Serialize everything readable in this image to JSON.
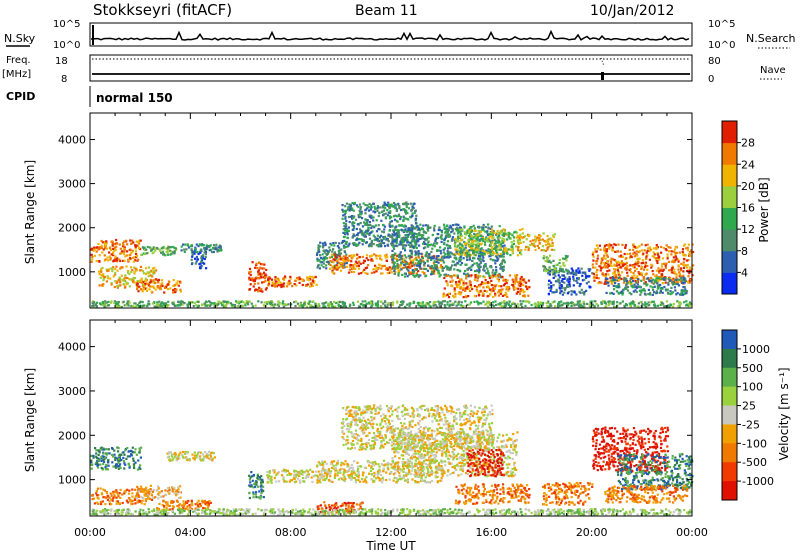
{
  "header": {
    "station": "Stokkseyri (fitACF)",
    "beam": "Beam 11",
    "date": "10/Jan/2012"
  },
  "noise_panel": {
    "left_label": "N.Sky",
    "right_label": "N.Search",
    "left_ticks": [
      "10^5",
      "10^0"
    ],
    "right_ticks": [
      "10^5",
      "10^0"
    ],
    "line_color": "#000000"
  },
  "freq_panel": {
    "left_label_1": "Freq.",
    "left_label_2": "[MHz]",
    "right_label": "Nave",
    "left_ticks": [
      "18",
      "8"
    ],
    "right_ticks": [
      "80",
      "0"
    ]
  },
  "cpid_panel": {
    "label": "CPID",
    "mode": "normal 150"
  },
  "chart_data": [
    {
      "type": "heatmap",
      "title": "Power",
      "ylabel": "Slant Range [km]",
      "colorbar_label": "Power [dB]",
      "yticks": [
        "1000",
        "2000",
        "3000",
        "4000"
      ],
      "ylim": [
        180,
        4600
      ],
      "colorbar_ticks": [
        "4",
        "8",
        "12",
        "16",
        "20",
        "24",
        "28"
      ],
      "colorbar_range": [
        0,
        32
      ],
      "colors": [
        "#0a2cf0",
        "#2d5fb0",
        "#4f8a6a",
        "#2fa84e",
        "#9bcf3e",
        "#f0b400",
        "#f07a00",
        "#e01e00"
      ],
      "bands": [
        {
          "t0": 0.0,
          "t1": 2.0,
          "r": 1500,
          "w": 250,
          "level": 6,
          "noise": 0.45
        },
        {
          "t0": 0.3,
          "t1": 2.6,
          "r": 900,
          "w": 250,
          "level": 5,
          "noise": 0.4
        },
        {
          "t0": 1.8,
          "t1": 3.6,
          "r": 700,
          "w": 150,
          "level": 6,
          "noise": 0.3
        },
        {
          "t0": 2.0,
          "t1": 3.4,
          "r": 1500,
          "w": 100,
          "level": 3,
          "noise": 0.3
        },
        {
          "t0": 3.6,
          "t1": 5.2,
          "r": 1550,
          "w": 100,
          "level": 2,
          "noise": 0.3
        },
        {
          "t0": 4.0,
          "t1": 4.6,
          "r": 1300,
          "w": 200,
          "level": 1,
          "noise": 0.2
        },
        {
          "t0": 6.3,
          "t1": 7.0,
          "r": 900,
          "w": 350,
          "level": 7,
          "noise": 0.3
        },
        {
          "t0": 7.0,
          "t1": 9.0,
          "r": 800,
          "w": 120,
          "level": 6,
          "noise": 0.3
        },
        {
          "t0": 9.0,
          "t1": 10.2,
          "r": 1400,
          "w": 300,
          "level": 2,
          "noise": 0.25
        },
        {
          "t0": 9.5,
          "t1": 14.0,
          "r": 1200,
          "w": 220,
          "level": 6,
          "noise": 0.45
        },
        {
          "t0": 10.0,
          "t1": 13.0,
          "r": 2100,
          "w": 500,
          "level": 2,
          "noise": 0.25
        },
        {
          "t0": 12.0,
          "t1": 16.5,
          "r": 1500,
          "w": 600,
          "level": 2,
          "noise": 0.3
        },
        {
          "t0": 14.5,
          "t1": 17.2,
          "r": 1700,
          "w": 300,
          "level": 4,
          "noise": 0.35
        },
        {
          "t0": 14.0,
          "t1": 17.5,
          "r": 700,
          "w": 250,
          "level": 6,
          "noise": 0.4
        },
        {
          "t0": 17.0,
          "t1": 18.5,
          "r": 1700,
          "w": 200,
          "level": 5,
          "noise": 0.4
        },
        {
          "t0": 18.2,
          "t1": 20.0,
          "r": 800,
          "w": 300,
          "level": 1,
          "noise": 0.3
        },
        {
          "t0": 18.0,
          "t1": 19.0,
          "r": 1200,
          "w": 200,
          "level": 3,
          "noise": 0.3
        },
        {
          "t0": 20.0,
          "t1": 24.0,
          "r": 1200,
          "w": 450,
          "level": 6,
          "noise": 0.45
        },
        {
          "t0": 20.5,
          "t1": 23.8,
          "r": 700,
          "w": 200,
          "level": 2,
          "noise": 0.3
        },
        {
          "t0": 0.0,
          "t1": 24.0,
          "r": 280,
          "w": 80,
          "level": 3,
          "noise": 0.65
        }
      ]
    },
    {
      "type": "heatmap",
      "title": "Velocity",
      "ylabel": "Slant Range [km]",
      "xlabel": "Time UT",
      "colorbar_label": "Velocity [m s⁻¹]",
      "yticks": [
        "1000",
        "2000",
        "3000",
        "4000"
      ],
      "ylim": [
        180,
        4600
      ],
      "xticks": [
        "00:00",
        "04:00",
        "08:00",
        "12:00",
        "16:00",
        "20:00",
        "00:00"
      ],
      "colorbar_ticks": [
        "1000",
        "500",
        "100",
        "25",
        "-25",
        "-100",
        "-500",
        "-1000"
      ],
      "colors": [
        "#1f5ab8",
        "#2d7a4a",
        "#5cb04a",
        "#9ad23e",
        "#c8c8c0",
        "#f0a000",
        "#f07a00",
        "#f03a00",
        "#e01000"
      ],
      "bands": [
        {
          "t0": 0.0,
          "t1": 2.0,
          "r": 1500,
          "w": 250,
          "level": 1,
          "noise": 0.4
        },
        {
          "t0": 0.0,
          "t1": 2.6,
          "r": 650,
          "w": 180,
          "level": 6,
          "noise": 0.4
        },
        {
          "t0": 1.8,
          "t1": 3.6,
          "r": 750,
          "w": 150,
          "level": 5,
          "noise": 0.35
        },
        {
          "t0": 2.6,
          "t1": 4.8,
          "r": 450,
          "w": 100,
          "level": 6,
          "noise": 0.3
        },
        {
          "t0": 3.0,
          "t1": 5.0,
          "r": 1550,
          "w": 100,
          "level": 4,
          "noise": 0.35
        },
        {
          "t0": 6.3,
          "t1": 6.9,
          "r": 900,
          "w": 300,
          "level": 1,
          "noise": 0.3
        },
        {
          "t0": 7.0,
          "t1": 9.5,
          "r": 1100,
          "w": 150,
          "level": 4,
          "noise": 0.35
        },
        {
          "t0": 9.0,
          "t1": 14.0,
          "r": 1200,
          "w": 250,
          "level": 4,
          "noise": 0.4
        },
        {
          "t0": 10.0,
          "t1": 16.0,
          "r": 2200,
          "w": 500,
          "level": 4,
          "noise": 0.4
        },
        {
          "t0": 12.0,
          "t1": 17.0,
          "r": 1600,
          "w": 500,
          "level": 4,
          "noise": 0.4
        },
        {
          "t0": 9.0,
          "t1": 11.0,
          "r": 400,
          "w": 120,
          "level": 7,
          "noise": 0.4
        },
        {
          "t0": 14.5,
          "t1": 17.5,
          "r": 700,
          "w": 220,
          "level": 6,
          "noise": 0.3
        },
        {
          "t0": 15.0,
          "t1": 16.5,
          "r": 1400,
          "w": 300,
          "level": 8,
          "noise": 0.4
        },
        {
          "t0": 18.0,
          "t1": 20.0,
          "r": 700,
          "w": 250,
          "level": 6,
          "noise": 0.3
        },
        {
          "t0": 20.0,
          "t1": 23.0,
          "r": 1700,
          "w": 500,
          "level": 8,
          "noise": 0.4
        },
        {
          "t0": 21.0,
          "t1": 24.0,
          "r": 1200,
          "w": 400,
          "level": 1,
          "noise": 0.4
        },
        {
          "t0": 20.5,
          "t1": 23.8,
          "r": 700,
          "w": 200,
          "level": 6,
          "noise": 0.3
        },
        {
          "t0": 0.0,
          "t1": 24.0,
          "r": 280,
          "w": 80,
          "level": 3,
          "noise": 0.65
        }
      ]
    }
  ]
}
